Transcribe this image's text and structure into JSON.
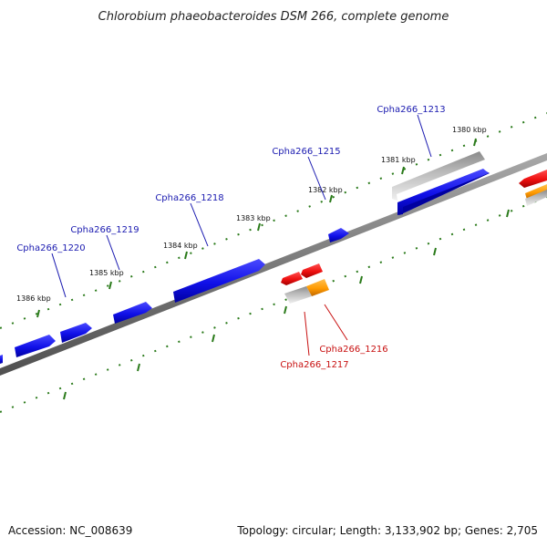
{
  "title": "Chlorobium phaeobacteroides DSM 266, complete genome",
  "footer": {
    "accession": "Accession: NC_008639",
    "summary": "Topology: circular; Length: 3,133,902 bp; Genes: 2,705"
  },
  "colors": {
    "backbone": "#808080",
    "tick": "#2a7a1a",
    "forward_gene": "#1212e0",
    "reverse_gene": "#ee1010",
    "rna_gene": "#ff9a00",
    "gray_gene": "#b8b8b8",
    "label_blue": "#1a1ab0",
    "label_red": "#c81010"
  },
  "scale_labels": [
    "1380 kbp",
    "1381 kbp",
    "1382 kbp",
    "1383 kbp",
    "1384 kbp",
    "1385 kbp",
    "1386 kbp"
  ],
  "genes": [
    {
      "name": "Cpha266_1213",
      "strand": "forward"
    },
    {
      "name": "Cpha266_1215",
      "strand": "forward"
    },
    {
      "name": "Cpha266_1218",
      "strand": "forward"
    },
    {
      "name": "Cpha266_1219",
      "strand": "forward"
    },
    {
      "name": "Cpha266_1220",
      "strand": "forward"
    },
    {
      "name": "Cpha266_1216",
      "strand": "reverse"
    },
    {
      "name": "Cpha266_1217",
      "strand": "reverse"
    }
  ]
}
